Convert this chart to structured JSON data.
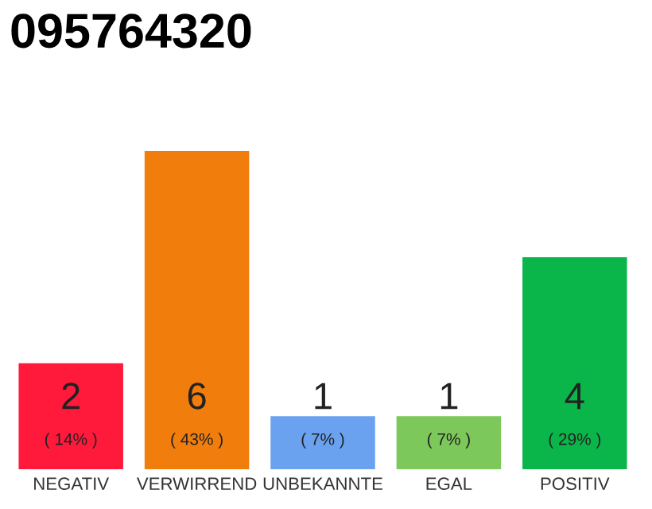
{
  "chart_data": {
    "type": "bar",
    "title": "095764320",
    "categories": [
      "NEGATIV",
      "VERWIRREND",
      "UNBEKANNTE",
      "EGAL",
      "POSITIV"
    ],
    "values": [
      2,
      6,
      1,
      1,
      4
    ],
    "colors": [
      "#ff1a3c",
      "#f07d0c",
      "#6aa2f0",
      "#7dc85a",
      "#0ab54a"
    ],
    "value_labels": [
      "2\n( 14% )",
      "6\n( 43% )",
      "1\n( 7% )",
      "1\n( 7% )",
      "4\n( 29% )"
    ],
    "grid": false,
    "legend": false
  }
}
